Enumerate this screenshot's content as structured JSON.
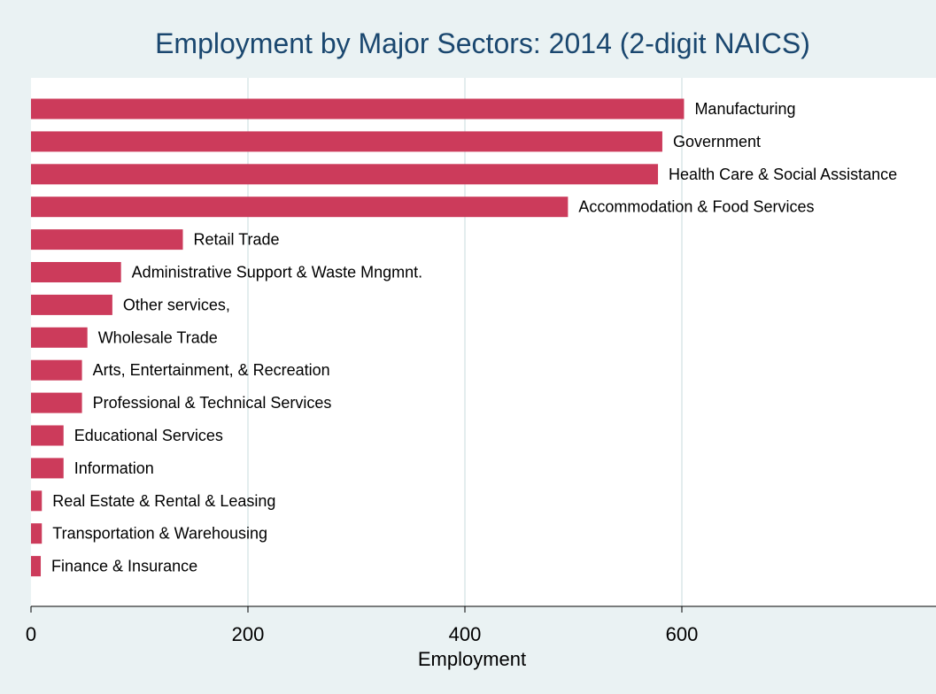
{
  "chart_data": {
    "type": "bar",
    "orientation": "horizontal",
    "title": "Employment by Major Sectors: 2014 (2-digit NAICS)",
    "xlabel": "Employment",
    "ylabel": "",
    "xlim": [
      0,
      820
    ],
    "xticks": [
      0,
      200,
      400,
      600
    ],
    "grid": true,
    "categories": [
      "Manufacturing",
      "Government",
      "Health Care & Social Assistance",
      "Accommodation & Food Services",
      "Retail Trade",
      "Administrative Support & Waste Mngmnt.",
      "Other services,",
      "Wholesale Trade",
      "Arts, Entertainment, & Recreation",
      "Professional & Technical Services",
      "Educational Services",
      "Information",
      "Real Estate & Rental & Leasing",
      "Transportation & Warehousing",
      "Finance & Insurance"
    ],
    "values": [
      602,
      582,
      578,
      495,
      140,
      83,
      75,
      52,
      47,
      47,
      30,
      30,
      10,
      10,
      9
    ],
    "colors": {
      "background": "#eaf2f3",
      "plot_background": "#ffffff",
      "bar": "#cc3b5b",
      "title": "#1a476f",
      "grid": "#e3edee",
      "axis": "#000000"
    }
  }
}
